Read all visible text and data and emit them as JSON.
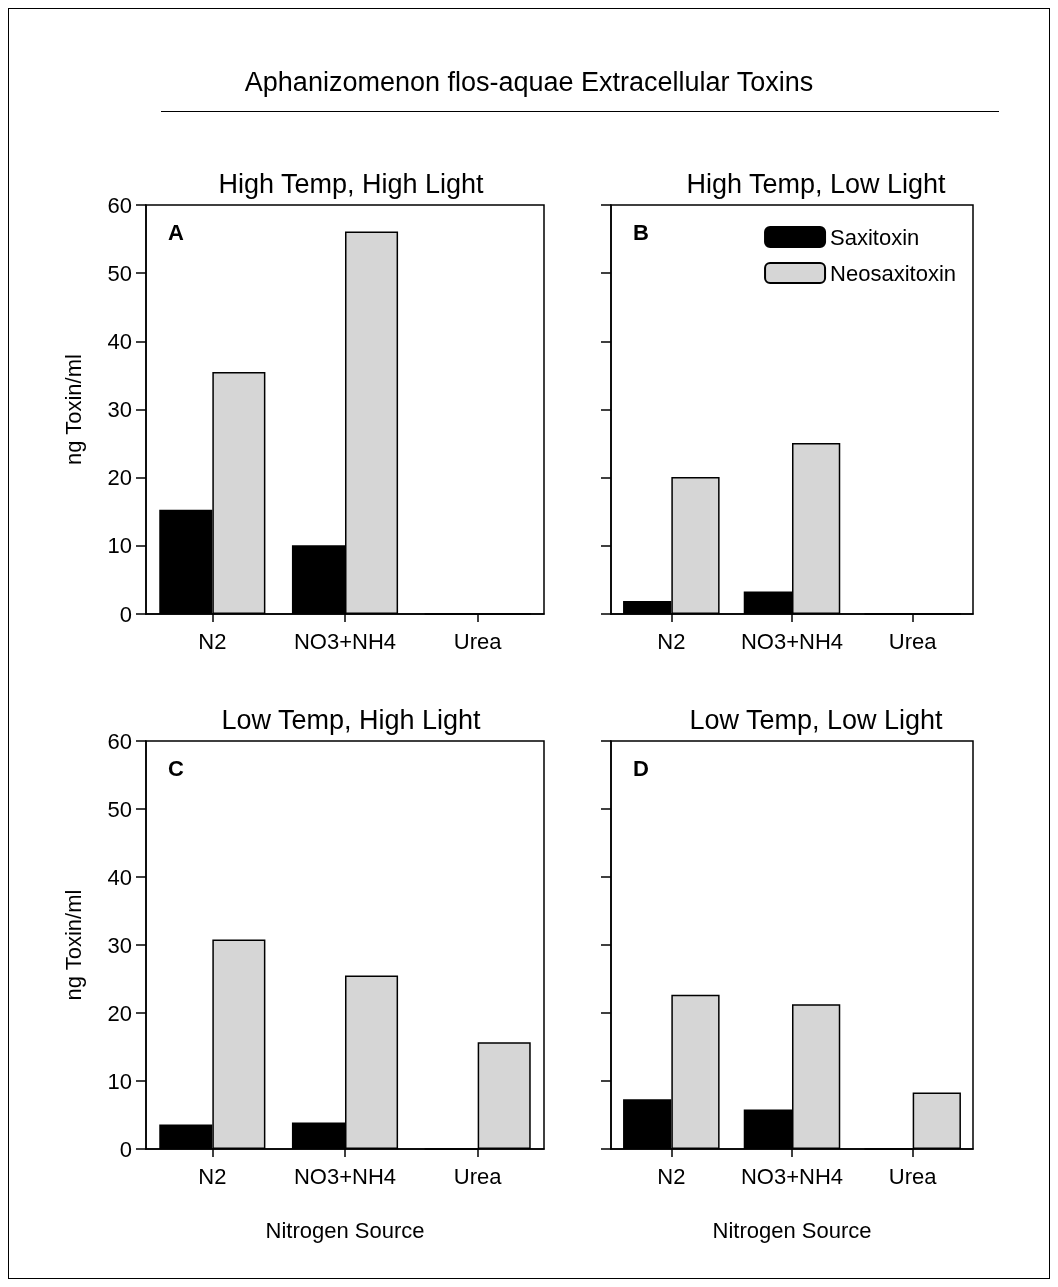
{
  "chart_data": [
    {
      "type": "bar",
      "title": "High Temp, High Light",
      "ylabel": "ng Toxin/ml",
      "categories": [
        "N2",
        "NO3+NH4",
        "Urea"
      ],
      "annotations": [
        "A",
        "Aphanizomenon flos-aquae Extracellular Toxins"
      ],
      "series": [
        {
          "color": "#000000",
          "values": [
            15.3,
            10.1,
            0
          ]
        },
        {
          "color": "#d6d6d6",
          "values": [
            35.5,
            56.1,
            0
          ]
        }
      ],
      "ylim": [
        0,
        60
      ],
      "yticks": [
        0,
        10,
        20,
        30,
        40,
        50,
        60
      ]
    },
    {
      "type": "bar",
      "title": "High Temp, Low Light",
      "categories": [
        "N2",
        "NO3+NH4",
        "Urea"
      ],
      "annotations": [
        "B"
      ],
      "series": [
        {
          "name": "Saxitoxin",
          "color": "#000000",
          "values": [
            1.9,
            3.3,
            0
          ]
        },
        {
          "name": "Neosaxitoxin",
          "color": "#d6d6d6",
          "values": [
            20.1,
            25.1,
            0
          ]
        }
      ],
      "ylim": [
        0,
        60
      ],
      "yticks": [
        0,
        10,
        20,
        30,
        40,
        50,
        60
      ],
      "tick_labels": "x",
      "legend": "top right"
    },
    {
      "type": "bar",
      "title": "Low Temp, High Light",
      "xlabel": "Nitrogen Source",
      "ylabel": "ng Toxin/ml",
      "categories": [
        "N2",
        "NO3+NH4",
        "Urea"
      ],
      "annotations": [
        "C"
      ],
      "series": [
        {
          "color": "#000000",
          "values": [
            3.6,
            3.9,
            0
          ]
        },
        {
          "color": "#d6d6d6",
          "values": [
            30.8,
            25.5,
            15.7
          ]
        }
      ],
      "ylim": [
        0,
        60
      ],
      "yticks": [
        0,
        10,
        20,
        30,
        40,
        50,
        60
      ]
    },
    {
      "type": "bar",
      "title": "Low Temp, Low Light",
      "xlabel": "Nitrogen Source",
      "categories": [
        "N2",
        "NO3+NH4",
        "Urea"
      ],
      "annotations": [
        "D"
      ],
      "series": [
        {
          "color": "#000000",
          "values": [
            7.3,
            5.8,
            0
          ]
        },
        {
          "color": "#d6d6d6",
          "values": [
            22.7,
            21.3,
            8.3
          ]
        }
      ],
      "ylim": [
        0,
        60
      ],
      "yticks": [
        0,
        10,
        20,
        30,
        40,
        50,
        60
      ],
      "tick_labels": "x"
    }
  ]
}
